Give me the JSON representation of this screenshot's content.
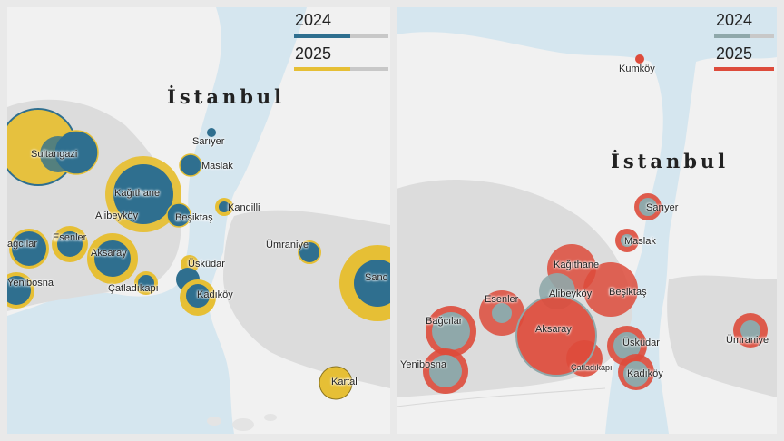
{
  "colors": {
    "sea": "#d5e6ef",
    "land": "#f1f1f1",
    "urban": "#dadada",
    "blue": "#2f6f8f",
    "yellow": "#e6bf35",
    "gray": "#8fa8aa",
    "red": "#dd4b3b",
    "legend_track": "#c8c8c8"
  },
  "left_map": {
    "city_label": "İstanbul",
    "legend": [
      {
        "year": "2024",
        "color": "#2f6f8f",
        "fill_fraction": 0.6
      },
      {
        "year": "2025",
        "color": "#e6bf35",
        "fill_fraction": 0.6
      }
    ],
    "places": [
      {
        "name": "Sultangazi"
      },
      {
        "name": "Sarıyer"
      },
      {
        "name": "Maslak"
      },
      {
        "name": "Kağıthane"
      },
      {
        "name": "Alibeyköy"
      },
      {
        "name": "Beşiktaş"
      },
      {
        "name": "Kandilli"
      },
      {
        "name": "Bağcılar",
        "display": "ağcılar"
      },
      {
        "name": "Esenler"
      },
      {
        "name": "Aksaray"
      },
      {
        "name": "Ümraniye"
      },
      {
        "name": "Üsküdar"
      },
      {
        "name": "Yenibosna"
      },
      {
        "name": "Çatladıkapı"
      },
      {
        "name": "Kadıköy"
      },
      {
        "name": "Sancaktepe",
        "display": "Sanc"
      },
      {
        "name": "Kartal"
      }
    ]
  },
  "right_map": {
    "city_label": "İstanbul",
    "legend": [
      {
        "year": "2024",
        "color": "#8fa8aa",
        "fill_fraction": 0.6
      },
      {
        "year": "2025",
        "color": "#dd4b3b",
        "fill_fraction": 1.0
      }
    ],
    "places": [
      {
        "name": "Kumköy"
      },
      {
        "name": "Sarıyer"
      },
      {
        "name": "Maslak"
      },
      {
        "name": "Kağıthane"
      },
      {
        "name": "Alibeyköy"
      },
      {
        "name": "Beşiktaş"
      },
      {
        "name": "Esenler"
      },
      {
        "name": "Bağcılar"
      },
      {
        "name": "Aksaray"
      },
      {
        "name": "Üsküdar"
      },
      {
        "name": "Yenibosna"
      },
      {
        "name": "Çatladıkapı"
      },
      {
        "name": "Kadıköy"
      },
      {
        "name": "Ümraniye"
      }
    ]
  }
}
